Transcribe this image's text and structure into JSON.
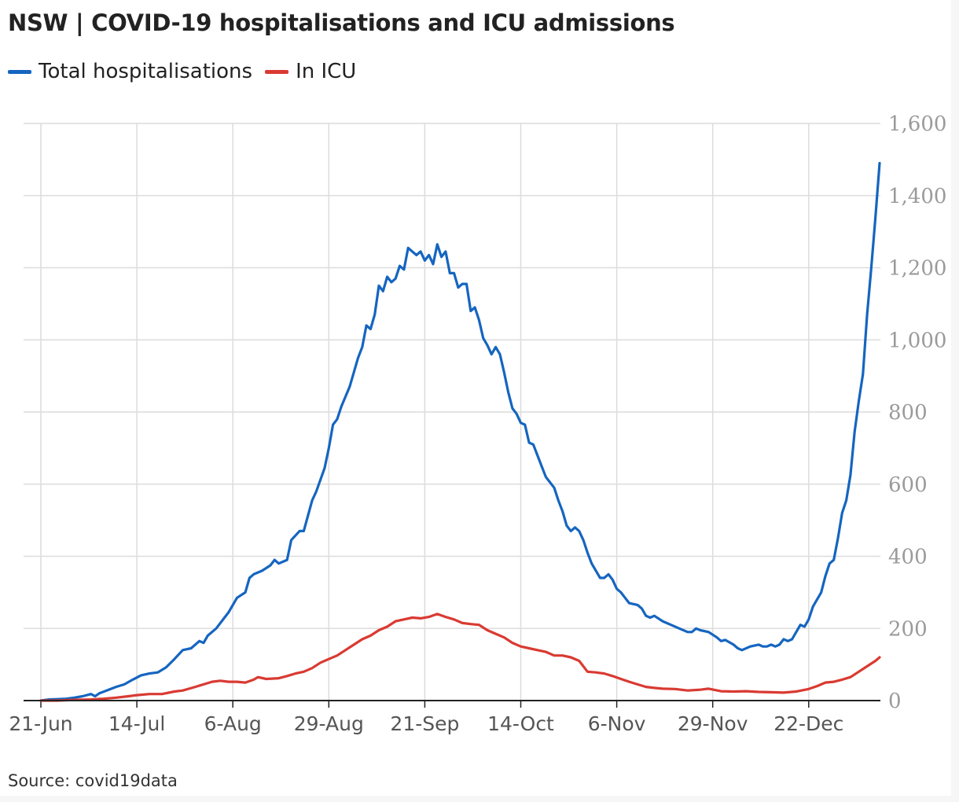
{
  "title": "NSW | COVID-19 hospitalisations and ICU admissions",
  "source": "Source: covid19data",
  "colors": {
    "hospital": "#1565c0",
    "icu": "#d93a32",
    "grid": "#dcdcdc",
    "axis": "#222222"
  },
  "legend": [
    {
      "label": "Total hospitalisations",
      "color": "#1565c0"
    },
    {
      "label": "In ICU",
      "color": "#d93a32"
    }
  ],
  "chart_data": {
    "type": "line",
    "title": "NSW | COVID-19 hospitalisations and ICU admissions",
    "xlabel": "",
    "ylabel": "",
    "x_range": [
      "2021-06-21",
      "2022-01-14"
    ],
    "ylim": [
      0,
      1600
    ],
    "y_ticks": [
      0,
      200,
      400,
      600,
      800,
      1000,
      1200,
      1400,
      1600
    ],
    "y_tick_labels": [
      "0",
      "200",
      "400",
      "600",
      "800",
      "1,000",
      "1,200",
      "1,400",
      "1,600"
    ],
    "x_ticks": [
      {
        "date": "2021-06-21",
        "label": "21-Jun"
      },
      {
        "date": "2021-07-14",
        "label": "14-Jul"
      },
      {
        "date": "2021-08-06",
        "label": "6-Aug"
      },
      {
        "date": "2021-08-29",
        "label": "29-Aug"
      },
      {
        "date": "2021-09-21",
        "label": "21-Sep"
      },
      {
        "date": "2021-10-14",
        "label": "14-Oct"
      },
      {
        "date": "2021-11-06",
        "label": "6-Nov"
      },
      {
        "date": "2021-11-29",
        "label": "29-Nov"
      },
      {
        "date": "2021-12-22",
        "label": "22-Dec"
      }
    ],
    "grid": true,
    "legend_position": "top-left",
    "series": [
      {
        "name": "Total hospitalisations",
        "color": "#1565c0",
        "points": [
          [
            "2021-06-21",
            0
          ],
          [
            "2021-06-23",
            3
          ],
          [
            "2021-06-25",
            4
          ],
          [
            "2021-06-27",
            5
          ],
          [
            "2021-06-29",
            8
          ],
          [
            "2021-07-01",
            12
          ],
          [
            "2021-07-03",
            18
          ],
          [
            "2021-07-04",
            12
          ],
          [
            "2021-07-05",
            20
          ],
          [
            "2021-07-07",
            29
          ],
          [
            "2021-07-09",
            38
          ],
          [
            "2021-07-11",
            45
          ],
          [
            "2021-07-13",
            58
          ],
          [
            "2021-07-15",
            70
          ],
          [
            "2021-07-17",
            75
          ],
          [
            "2021-07-19",
            78
          ],
          [
            "2021-07-21",
            92
          ],
          [
            "2021-07-23",
            115
          ],
          [
            "2021-07-25",
            140
          ],
          [
            "2021-07-27",
            145
          ],
          [
            "2021-07-29",
            165
          ],
          [
            "2021-07-30",
            160
          ],
          [
            "2021-07-31",
            180
          ],
          [
            "2021-08-02",
            200
          ],
          [
            "2021-08-04",
            230
          ],
          [
            "2021-08-05",
            245
          ],
          [
            "2021-08-07",
            285
          ],
          [
            "2021-08-09",
            300
          ],
          [
            "2021-08-10",
            340
          ],
          [
            "2021-08-11",
            350
          ],
          [
            "2021-08-13",
            360
          ],
          [
            "2021-08-15",
            375
          ],
          [
            "2021-08-16",
            390
          ],
          [
            "2021-08-17",
            380
          ],
          [
            "2021-08-19",
            390
          ],
          [
            "2021-08-20",
            445
          ],
          [
            "2021-08-22",
            470
          ],
          [
            "2021-08-23",
            470
          ],
          [
            "2021-08-25",
            555
          ],
          [
            "2021-08-26",
            580
          ],
          [
            "2021-08-28",
            645
          ],
          [
            "2021-08-29",
            700
          ],
          [
            "2021-08-30",
            765
          ],
          [
            "2021-08-31",
            780
          ],
          [
            "2021-09-01",
            815
          ],
          [
            "2021-09-03",
            870
          ],
          [
            "2021-09-05",
            950
          ],
          [
            "2021-09-06",
            980
          ],
          [
            "2021-09-07",
            1040
          ],
          [
            "2021-09-08",
            1030
          ],
          [
            "2021-09-09",
            1070
          ],
          [
            "2021-09-10",
            1150
          ],
          [
            "2021-09-11",
            1135
          ],
          [
            "2021-09-12",
            1175
          ],
          [
            "2021-09-13",
            1160
          ],
          [
            "2021-09-14",
            1170
          ],
          [
            "2021-09-15",
            1205
          ],
          [
            "2021-09-16",
            1195
          ],
          [
            "2021-09-17",
            1255
          ],
          [
            "2021-09-18",
            1245
          ],
          [
            "2021-09-19",
            1235
          ],
          [
            "2021-09-20",
            1245
          ],
          [
            "2021-09-21",
            1220
          ],
          [
            "2021-09-22",
            1235
          ],
          [
            "2021-09-23",
            1210
          ],
          [
            "2021-09-24",
            1265
          ],
          [
            "2021-09-25",
            1230
          ],
          [
            "2021-09-26",
            1245
          ],
          [
            "2021-09-27",
            1185
          ],
          [
            "2021-09-28",
            1185
          ],
          [
            "2021-09-29",
            1145
          ],
          [
            "2021-09-30",
            1155
          ],
          [
            "2021-10-01",
            1155
          ],
          [
            "2021-10-02",
            1080
          ],
          [
            "2021-10-03",
            1090
          ],
          [
            "2021-10-04",
            1055
          ],
          [
            "2021-10-05",
            1005
          ],
          [
            "2021-10-06",
            985
          ],
          [
            "2021-10-07",
            960
          ],
          [
            "2021-10-08",
            980
          ],
          [
            "2021-10-09",
            960
          ],
          [
            "2021-10-10",
            910
          ],
          [
            "2021-10-11",
            855
          ],
          [
            "2021-10-12",
            810
          ],
          [
            "2021-10-13",
            795
          ],
          [
            "2021-10-14",
            770
          ],
          [
            "2021-10-15",
            765
          ],
          [
            "2021-10-16",
            715
          ],
          [
            "2021-10-17",
            710
          ],
          [
            "2021-10-18",
            680
          ],
          [
            "2021-10-19",
            650
          ],
          [
            "2021-10-20",
            620
          ],
          [
            "2021-10-22",
            590
          ],
          [
            "2021-10-23",
            555
          ],
          [
            "2021-10-24",
            525
          ],
          [
            "2021-10-25",
            485
          ],
          [
            "2021-10-26",
            470
          ],
          [
            "2021-10-27",
            480
          ],
          [
            "2021-10-28",
            470
          ],
          [
            "2021-10-29",
            445
          ],
          [
            "2021-10-30",
            410
          ],
          [
            "2021-10-31",
            380
          ],
          [
            "2021-11-01",
            360
          ],
          [
            "2021-11-02",
            340
          ],
          [
            "2021-11-03",
            340
          ],
          [
            "2021-11-04",
            350
          ],
          [
            "2021-11-05",
            335
          ],
          [
            "2021-11-06",
            310
          ],
          [
            "2021-11-07",
            300
          ],
          [
            "2021-11-08",
            285
          ],
          [
            "2021-11-09",
            270
          ],
          [
            "2021-11-11",
            265
          ],
          [
            "2021-11-12",
            255
          ],
          [
            "2021-11-13",
            235
          ],
          [
            "2021-11-14",
            230
          ],
          [
            "2021-11-15",
            235
          ],
          [
            "2021-11-17",
            220
          ],
          [
            "2021-11-19",
            210
          ],
          [
            "2021-11-21",
            200
          ],
          [
            "2021-11-23",
            190
          ],
          [
            "2021-11-24",
            190
          ],
          [
            "2021-11-25",
            200
          ],
          [
            "2021-11-26",
            195
          ],
          [
            "2021-11-28",
            190
          ],
          [
            "2021-11-30",
            175
          ],
          [
            "2021-12-01",
            165
          ],
          [
            "2021-12-02",
            168
          ],
          [
            "2021-12-04",
            155
          ],
          [
            "2021-12-05",
            145
          ],
          [
            "2021-12-06",
            140
          ],
          [
            "2021-12-08",
            150
          ],
          [
            "2021-12-10",
            155
          ],
          [
            "2021-12-11",
            150
          ],
          [
            "2021-12-12",
            150
          ],
          [
            "2021-12-13",
            155
          ],
          [
            "2021-12-14",
            150
          ],
          [
            "2021-12-15",
            155
          ],
          [
            "2021-12-16",
            170
          ],
          [
            "2021-12-17",
            165
          ],
          [
            "2021-12-18",
            170
          ],
          [
            "2021-12-20",
            210
          ],
          [
            "2021-12-21",
            205
          ],
          [
            "2021-12-22",
            225
          ],
          [
            "2021-12-23",
            260
          ],
          [
            "2021-12-24",
            280
          ],
          [
            "2021-12-25",
            300
          ],
          [
            "2021-12-26",
            345
          ],
          [
            "2021-12-27",
            380
          ],
          [
            "2021-12-28",
            390
          ],
          [
            "2021-12-29",
            450
          ],
          [
            "2021-12-30",
            520
          ],
          [
            "2021-12-31",
            555
          ],
          [
            "2022-01-01",
            625
          ],
          [
            "2022-01-02",
            745
          ],
          [
            "2022-01-03",
            830
          ],
          [
            "2022-01-04",
            905
          ],
          [
            "2022-01-05",
            1070
          ],
          [
            "2022-01-06",
            1200
          ],
          [
            "2022-01-07",
            1340
          ],
          [
            "2022-01-08",
            1490
          ]
        ]
      },
      {
        "name": "In ICU",
        "color": "#d93a32",
        "points": [
          [
            "2021-06-21",
            0
          ],
          [
            "2021-06-25",
            0
          ],
          [
            "2021-06-29",
            2
          ],
          [
            "2021-07-03",
            3
          ],
          [
            "2021-07-06",
            5
          ],
          [
            "2021-07-09",
            8
          ],
          [
            "2021-07-12",
            12
          ],
          [
            "2021-07-14",
            15
          ],
          [
            "2021-07-17",
            18
          ],
          [
            "2021-07-20",
            18
          ],
          [
            "2021-07-23",
            25
          ],
          [
            "2021-07-25",
            28
          ],
          [
            "2021-07-28",
            38
          ],
          [
            "2021-07-30",
            45
          ],
          [
            "2021-08-01",
            52
          ],
          [
            "2021-08-03",
            55
          ],
          [
            "2021-08-05",
            52
          ],
          [
            "2021-08-07",
            52
          ],
          [
            "2021-08-09",
            50
          ],
          [
            "2021-08-11",
            58
          ],
          [
            "2021-08-12",
            65
          ],
          [
            "2021-08-14",
            60
          ],
          [
            "2021-08-17",
            62
          ],
          [
            "2021-08-19",
            68
          ],
          [
            "2021-08-21",
            75
          ],
          [
            "2021-08-23",
            80
          ],
          [
            "2021-08-25",
            90
          ],
          [
            "2021-08-27",
            105
          ],
          [
            "2021-08-29",
            115
          ],
          [
            "2021-08-31",
            125
          ],
          [
            "2021-09-02",
            140
          ],
          [
            "2021-09-04",
            155
          ],
          [
            "2021-09-06",
            170
          ],
          [
            "2021-09-08",
            180
          ],
          [
            "2021-09-10",
            195
          ],
          [
            "2021-09-12",
            205
          ],
          [
            "2021-09-14",
            220
          ],
          [
            "2021-09-16",
            225
          ],
          [
            "2021-09-18",
            230
          ],
          [
            "2021-09-20",
            228
          ],
          [
            "2021-09-22",
            232
          ],
          [
            "2021-09-24",
            240
          ],
          [
            "2021-09-26",
            232
          ],
          [
            "2021-09-28",
            225
          ],
          [
            "2021-09-30",
            215
          ],
          [
            "2021-10-02",
            212
          ],
          [
            "2021-10-04",
            210
          ],
          [
            "2021-10-06",
            195
          ],
          [
            "2021-10-08",
            185
          ],
          [
            "2021-10-10",
            175
          ],
          [
            "2021-10-12",
            160
          ],
          [
            "2021-10-14",
            150
          ],
          [
            "2021-10-16",
            145
          ],
          [
            "2021-10-18",
            140
          ],
          [
            "2021-10-20",
            135
          ],
          [
            "2021-10-22",
            125
          ],
          [
            "2021-10-24",
            125
          ],
          [
            "2021-10-26",
            120
          ],
          [
            "2021-10-28",
            110
          ],
          [
            "2021-10-30",
            80
          ],
          [
            "2021-11-01",
            78
          ],
          [
            "2021-11-03",
            75
          ],
          [
            "2021-11-05",
            68
          ],
          [
            "2021-11-07",
            60
          ],
          [
            "2021-11-09",
            52
          ],
          [
            "2021-11-11",
            45
          ],
          [
            "2021-11-13",
            38
          ],
          [
            "2021-11-15",
            35
          ],
          [
            "2021-11-17",
            33
          ],
          [
            "2021-11-20",
            32
          ],
          [
            "2021-11-23",
            28
          ],
          [
            "2021-11-26",
            30
          ],
          [
            "2021-11-28",
            33
          ],
          [
            "2021-12-01",
            26
          ],
          [
            "2021-12-04",
            25
          ],
          [
            "2021-12-07",
            26
          ],
          [
            "2021-12-10",
            24
          ],
          [
            "2021-12-13",
            23
          ],
          [
            "2021-12-16",
            22
          ],
          [
            "2021-12-19",
            25
          ],
          [
            "2021-12-22",
            32
          ],
          [
            "2021-12-24",
            40
          ],
          [
            "2021-12-26",
            50
          ],
          [
            "2021-12-28",
            52
          ],
          [
            "2021-12-30",
            58
          ],
          [
            "2022-01-01",
            65
          ],
          [
            "2022-01-03",
            80
          ],
          [
            "2022-01-05",
            95
          ],
          [
            "2022-01-07",
            110
          ],
          [
            "2022-01-08",
            120
          ]
        ]
      }
    ]
  }
}
